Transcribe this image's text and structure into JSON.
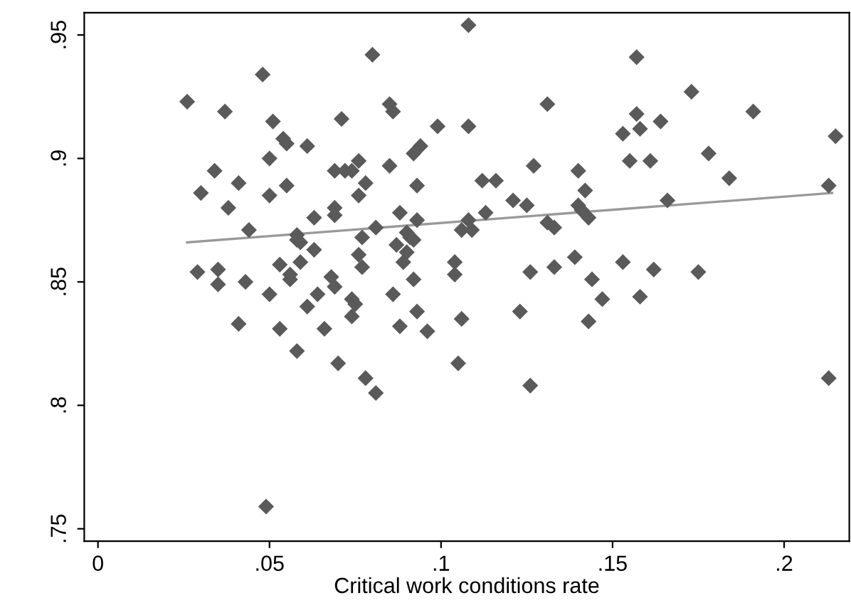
{
  "chart_data": {
    "type": "scatter",
    "xlabel": "Critical work conditions rate",
    "xlim": [
      -0.004,
      0.219
    ],
    "ylim": [
      0.745,
      0.959
    ],
    "xticks": [
      0,
      {
        "value": 0.05,
        "label": ".05"
      },
      {
        "value": 0.1,
        "label": ".1"
      },
      {
        "value": 0.15,
        "label": ".15"
      },
      {
        "value": 0.2,
        "label": ".2"
      }
    ],
    "yticks": [
      {
        "value": 0.75,
        "label": ".75"
      },
      {
        "value": 0.8,
        "label": ".8"
      },
      {
        "value": 0.85,
        "label": ".85"
      },
      {
        "value": 0.9,
        "label": ".9"
      },
      {
        "value": 0.95,
        "label": ".95"
      }
    ],
    "grid": false,
    "series": [
      {
        "marker": "diamond",
        "color": "#5a5a5a",
        "x": [
          0.048,
          0.026,
          0.037,
          0.051,
          0.054,
          0.055,
          0.05,
          0.034,
          0.041,
          0.03,
          0.05,
          0.055,
          0.038,
          0.044,
          0.058,
          0.029,
          0.035,
          0.053,
          0.043,
          0.035,
          0.05,
          0.056,
          0.041,
          0.053,
          0.058,
          0.049,
          0.108,
          0.08,
          0.085,
          0.086,
          0.071,
          0.131,
          0.099,
          0.108,
          0.061,
          0.094,
          0.092,
          0.076,
          0.069,
          0.072,
          0.074,
          0.085,
          0.127,
          0.14,
          0.078,
          0.093,
          0.112,
          0.116,
          0.076,
          0.121,
          0.125,
          0.14,
          0.069,
          0.069,
          0.063,
          0.088,
          0.113,
          0.093,
          0.081,
          0.108,
          0.106,
          0.109,
          0.131,
          0.133,
          0.09,
          0.058,
          0.059,
          0.077,
          0.091,
          0.092,
          0.063,
          0.087,
          0.076,
          0.09,
          0.139,
          0.059,
          0.089,
          0.104,
          0.077,
          0.056,
          0.126,
          0.133,
          0.068,
          0.092,
          0.104,
          0.069,
          0.064,
          0.061,
          0.074,
          0.075,
          0.074,
          0.086,
          0.066,
          0.07,
          0.078,
          0.081,
          0.088,
          0.093,
          0.096,
          0.106,
          0.105,
          0.123,
          0.126,
          0.157,
          0.173,
          0.191,
          0.157,
          0.164,
          0.153,
          0.158,
          0.215,
          0.155,
          0.161,
          0.178,
          0.184,
          0.213,
          0.142,
          0.166,
          0.141,
          0.143,
          0.153,
          0.162,
          0.175,
          0.144,
          0.147,
          0.158,
          0.143,
          0.213
        ],
        "values": [
          0.934,
          0.923,
          0.919,
          0.915,
          0.908,
          0.906,
          0.9,
          0.895,
          0.89,
          0.886,
          0.885,
          0.889,
          0.88,
          0.871,
          0.867,
          0.854,
          0.855,
          0.857,
          0.85,
          0.849,
          0.845,
          0.851,
          0.833,
          0.831,
          0.822,
          0.759,
          0.954,
          0.942,
          0.922,
          0.919,
          0.916,
          0.922,
          0.913,
          0.913,
          0.905,
          0.905,
          0.902,
          0.899,
          0.895,
          0.895,
          0.895,
          0.897,
          0.897,
          0.895,
          0.89,
          0.889,
          0.891,
          0.891,
          0.885,
          0.883,
          0.881,
          0.881,
          0.88,
          0.877,
          0.876,
          0.878,
          0.878,
          0.875,
          0.872,
          0.875,
          0.871,
          0.871,
          0.874,
          0.872,
          0.87,
          0.869,
          0.866,
          0.868,
          0.868,
          0.867,
          0.863,
          0.865,
          0.861,
          0.862,
          0.86,
          0.858,
          0.858,
          0.858,
          0.856,
          0.853,
          0.854,
          0.856,
          0.852,
          0.851,
          0.853,
          0.848,
          0.845,
          0.84,
          0.843,
          0.841,
          0.836,
          0.845,
          0.831,
          0.817,
          0.811,
          0.805,
          0.832,
          0.838,
          0.83,
          0.835,
          0.817,
          0.838,
          0.808,
          0.941,
          0.927,
          0.919,
          0.918,
          0.915,
          0.91,
          0.912,
          0.909,
          0.899,
          0.899,
          0.902,
          0.892,
          0.889,
          0.887,
          0.883,
          0.879,
          0.876,
          0.858,
          0.855,
          0.854,
          0.851,
          0.843,
          0.844,
          0.834,
          0.811
        ]
      },
      {
        "type": "line",
        "marker": "none",
        "color": "#999999",
        "x": [
          0.026,
          0.214
        ],
        "values": [
          0.866,
          0.886
        ]
      }
    ]
  }
}
